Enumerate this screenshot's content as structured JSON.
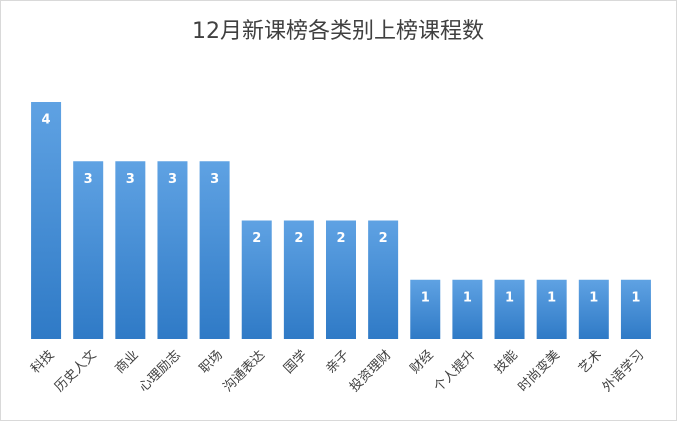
{
  "chart_data": {
    "type": "bar",
    "title": "12月新课榜各类别上榜课程数",
    "categories": [
      "科技",
      "历史人文",
      "商业",
      "心理励志",
      "职场",
      "沟通表达",
      "国学",
      "亲子",
      "投资理财",
      "财经",
      "个人提升",
      "技能",
      "时尚变美",
      "艺术",
      "外语学习"
    ],
    "values": [
      4,
      3,
      3,
      3,
      3,
      2,
      2,
      2,
      2,
      1,
      1,
      1,
      1,
      1,
      1
    ],
    "color": "#4a8fd6"
  }
}
